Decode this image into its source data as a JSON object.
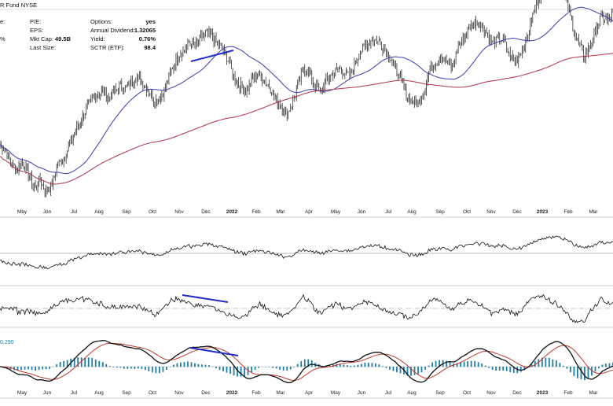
{
  "header": {
    "title_fragment": "R Fund",
    "exchange": "NYSE",
    "col1_labels": [
      "e:",
      "",
      "%"
    ],
    "stats": [
      {
        "label": "P/E:",
        "value": ""
      },
      {
        "label": "EPS:",
        "value": ""
      },
      {
        "label": "Mkt Cap:",
        "value": "49.5B"
      },
      {
        "label": "Last Size:",
        "value": ""
      },
      {
        "label": "Options:",
        "value": "yes"
      },
      {
        "label": "Annual Dividend:",
        "value": "1.32065"
      },
      {
        "label": "Yield:",
        "value": "0.76%"
      },
      {
        "label": "SCTR (ETF):",
        "value": "98.4"
      }
    ]
  },
  "chart_data": {
    "type": "line",
    "title": "",
    "x_tick_labels": [
      "May",
      "Jun",
      "Jul",
      "Aug",
      "Sep",
      "Oct",
      "Nov",
      "Dec",
      "2022",
      "Feb",
      "Mar",
      "Apr",
      "May",
      "Jun",
      "Jul",
      "Aug",
      "Sep",
      "Oct",
      "Nov",
      "Dec",
      "2023",
      "Feb",
      "Mar"
    ],
    "panels": [
      {
        "name": "price",
        "type": "ohlc",
        "series": [
          {
            "name": "Price",
            "color": "#111111",
            "values": [
              62,
              60,
              55,
              54,
              56,
              52,
              47,
              50,
              46,
              48,
              55,
              57,
              61,
              66,
              70,
              74,
              77,
              79,
              80,
              78,
              80,
              82,
              81,
              84,
              85,
              83,
              80,
              77,
              78,
              82,
              88,
              92,
              94,
              97,
              95,
              98,
              100,
              99,
              96,
              94,
              90,
              84,
              82,
              80,
              84,
              86,
              84,
              82,
              78,
              75,
              72,
              76,
              82,
              88,
              86,
              82,
              80,
              84,
              86,
              88,
              87,
              85,
              90,
              94,
              96,
              98,
              97,
              95,
              92,
              88,
              84,
              78,
              77,
              76,
              80,
              88,
              90,
              92,
              90,
              88,
              96,
              98,
              102,
              104,
              103,
              100,
              96,
              98,
              97,
              92,
              90,
              94,
              98,
              106,
              112,
              116,
              118,
              120,
              116,
              110,
              102,
              96,
              92,
              96,
              101,
              106,
              104,
              107
            ]
          },
          {
            "name": "50-day MA",
            "color": "#3b3db0",
            "values": []
          },
          {
            "name": "200-day MA",
            "color": "#b0304a",
            "values": []
          }
        ]
      },
      {
        "name": "indicator_1",
        "type": "line",
        "series": [
          {
            "name": "",
            "color": "#111111",
            "values": []
          }
        ]
      },
      {
        "name": "indicator_2",
        "type": "line",
        "series": [
          {
            "name": "",
            "color": "#111111",
            "values": []
          }
        ]
      },
      {
        "name": "macd",
        "type": "line+histogram",
        "label_value": "0.290",
        "series": [
          {
            "name": "",
            "color": "#111111",
            "values": []
          },
          {
            "name": "",
            "color": "#c0392b",
            "values": []
          },
          {
            "name": "",
            "color": "#1f7ea8",
            "values": []
          }
        ]
      }
    ],
    "annotations": [
      {
        "panel": "price",
        "color": "#1f2bc4",
        "description": "divergence trendline"
      },
      {
        "panel": "indicator_2",
        "color": "#1f2bc4",
        "description": "divergence trendline"
      },
      {
        "panel": "macd",
        "color": "#1f2bc4",
        "description": "divergence trendline"
      }
    ],
    "colors": {
      "price": "#111111",
      "ma_short": "#3b3db0",
      "ma_long": "#b0304a",
      "annotation": "#1f2bc4",
      "macd_line": "#111111",
      "signal_line": "#c0392b",
      "histogram": "#1f7ea8",
      "axis": "#444444"
    },
    "grid": false
  }
}
